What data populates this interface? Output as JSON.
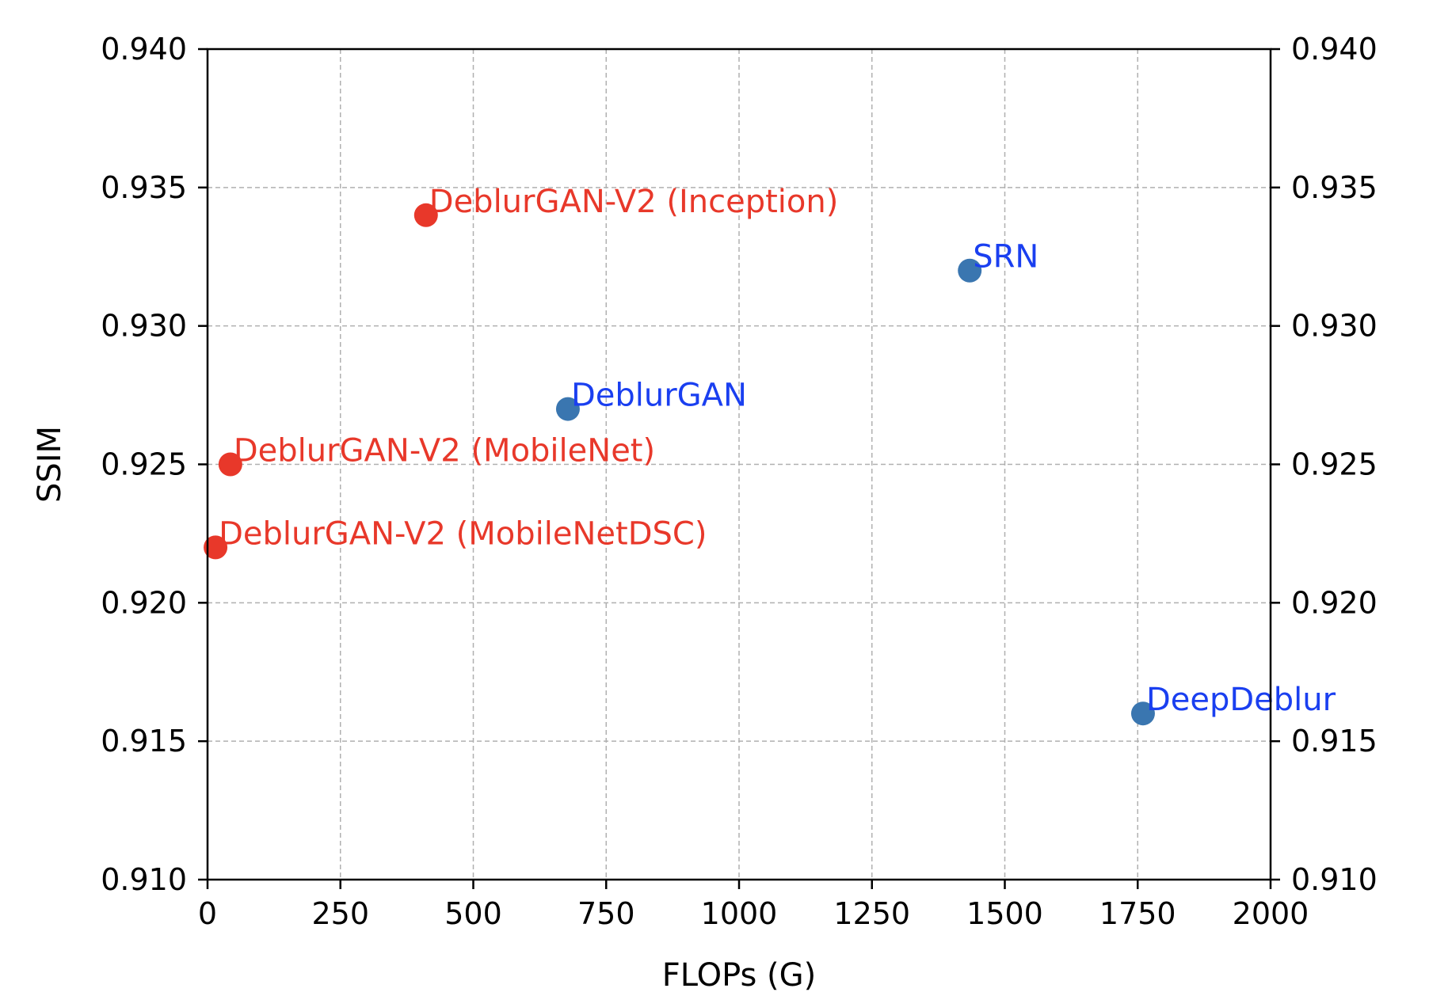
{
  "chart_data": {
    "type": "scatter",
    "title": "",
    "xlabel": "FLOPs (G)",
    "ylabel": "SSIM",
    "xlim": [
      0,
      2000
    ],
    "ylim": [
      0.91,
      0.94
    ],
    "x_ticks": [
      "0",
      "250",
      "500",
      "750",
      "1000",
      "1250",
      "1500",
      "1750",
      "2000"
    ],
    "y_ticks": [
      "0.910",
      "0.915",
      "0.920",
      "0.925",
      "0.930",
      "0.935",
      "0.940"
    ],
    "y_ticks_mirrored_right": true,
    "grid": true,
    "legend": "none",
    "points": [
      {
        "label": "DeblurGAN-V2 (Inception)",
        "x": 411,
        "y": 0.934,
        "color": "#e8382a",
        "label_color": "#e8382a"
      },
      {
        "label": "DeblurGAN-V2 (MobileNet)",
        "x": 43,
        "y": 0.925,
        "color": "#e8382a",
        "label_color": "#e8382a"
      },
      {
        "label": "DeblurGAN-V2 (MobileNetDSC)",
        "x": 15,
        "y": 0.922,
        "color": "#e8382a",
        "label_color": "#e8382a"
      },
      {
        "label": "SRN",
        "x": 1434,
        "y": 0.932,
        "color": "#3a76b0",
        "label_color": "#1a3ff0"
      },
      {
        "label": "DeblurGAN",
        "x": 678,
        "y": 0.927,
        "color": "#3a76b0",
        "label_color": "#1a3ff0"
      },
      {
        "label": "DeepDeblur",
        "x": 1760,
        "y": 0.916,
        "color": "#3a76b0",
        "label_color": "#1a3ff0"
      }
    ]
  }
}
